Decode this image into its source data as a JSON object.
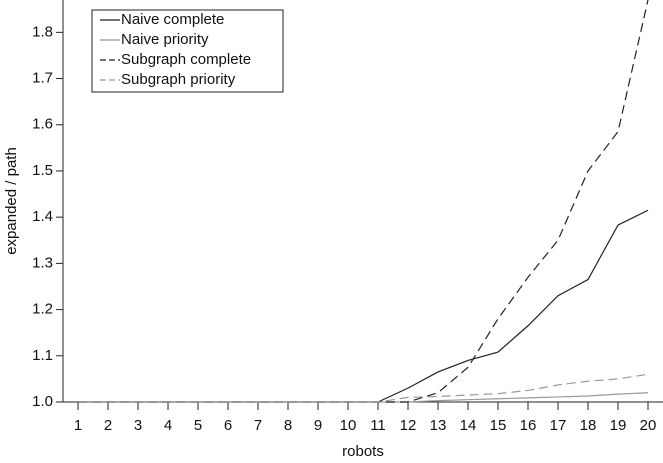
{
  "chart_data": {
    "type": "line",
    "xlabel": "robots",
    "ylabel": "expanded / path",
    "x": [
      1,
      2,
      3,
      4,
      5,
      6,
      7,
      8,
      9,
      10,
      11,
      12,
      13,
      14,
      15,
      16,
      17,
      18,
      19,
      20
    ],
    "xlim": [
      0.5,
      20.5
    ],
    "xticks": [
      1,
      2,
      3,
      4,
      5,
      6,
      7,
      8,
      9,
      10,
      11,
      12,
      13,
      14,
      15,
      16,
      17,
      18,
      19,
      20
    ],
    "ylim": [
      1.0,
      1.87
    ],
    "yticks": [
      {
        "value": 1.0,
        "label": "1.0"
      },
      1.1,
      1.2,
      1.3,
      1.4,
      1.5,
      1.6,
      1.7,
      1.8
    ],
    "legend": "upper left",
    "series": [
      {
        "name": "Naive complete",
        "color": "#222222",
        "dashed": false,
        "values": [
          1,
          1,
          1,
          1,
          1,
          1,
          1,
          1,
          1,
          1,
          1,
          1.03,
          1.065,
          1.09,
          1.108,
          1.165,
          1.23,
          1.265,
          1.383,
          1.415
        ]
      },
      {
        "name": "Naive priority",
        "color": "#999999",
        "dashed": false,
        "values": [
          1,
          1,
          1,
          1,
          1,
          1,
          1,
          1,
          1,
          1,
          1,
          1.0,
          1.003,
          1.005,
          1.007,
          1.009,
          1.011,
          1.013,
          1.017,
          1.02
        ]
      },
      {
        "name": "Subgraph complete",
        "color": "#222222",
        "dashed": true,
        "values": [
          1,
          1,
          1,
          1,
          1,
          1,
          1,
          1,
          1,
          1,
          1,
          1.0,
          1.02,
          1.075,
          1.18,
          1.27,
          1.35,
          1.5,
          1.585,
          1.87
        ]
      },
      {
        "name": "Subgraph priority",
        "color": "#999999",
        "dashed": true,
        "values": [
          1,
          1,
          1,
          1,
          1,
          1,
          1,
          1,
          1,
          1,
          1,
          1.01,
          1.012,
          1.015,
          1.018,
          1.025,
          1.037,
          1.045,
          1.05,
          1.06
        ]
      }
    ]
  }
}
